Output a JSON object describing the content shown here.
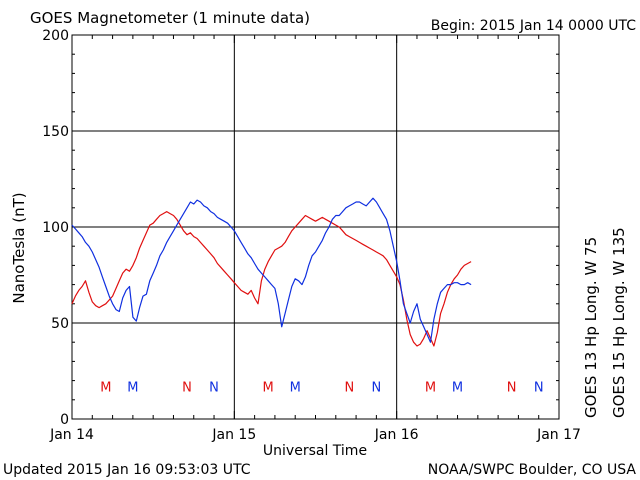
{
  "header": {
    "title": "GOES Magnetometer (1 minute data)",
    "begin": "Begin:  2015 Jan 14 0000 UTC"
  },
  "footer": {
    "updated": "Updated 2015 Jan 16 09:53:03 UTC",
    "credit": "NOAA/SWPC Boulder, CO USA"
  },
  "colors": {
    "goes13": "#e01010",
    "goes15": "#1030e0"
  },
  "chart_data": {
    "type": "line",
    "xlabel": "Universal Time",
    "ylabel": "NanoTesla (nT)",
    "xlim": [
      0,
      72
    ],
    "ylim": [
      0,
      200
    ],
    "grid": true,
    "x_ticks": [
      {
        "x": 0,
        "label": "Jan 14"
      },
      {
        "x": 24,
        "label": "Jan 15"
      },
      {
        "x": 48,
        "label": "Jan 16"
      },
      {
        "x": 72,
        "label": "Jan 17"
      }
    ],
    "y_ticks": [
      0,
      50,
      100,
      150,
      200
    ],
    "series": [
      {
        "name": "GOES 13 Hp  Long. W 75",
        "color": "#e01010",
        "x": [
          0,
          0.5,
          1,
          1.5,
          2,
          2.5,
          3,
          3.5,
          4,
          4.5,
          5,
          5.5,
          6,
          6.5,
          7,
          7.5,
          8,
          8.5,
          9,
          9.5,
          10,
          10.5,
          11,
          11.5,
          12,
          12.5,
          13,
          13.5,
          14,
          14.5,
          15,
          15.5,
          16,
          16.5,
          17,
          17.5,
          18,
          18.5,
          19,
          19.5,
          20,
          20.5,
          21,
          21.5,
          22,
          22.5,
          23,
          23.5,
          24,
          24.5,
          25,
          25.5,
          26,
          26.5,
          27,
          27.5,
          28,
          28.5,
          29,
          29.5,
          30,
          30.5,
          31,
          31.5,
          32,
          32.5,
          33,
          33.5,
          34,
          34.5,
          35,
          35.5,
          36,
          36.5,
          37,
          37.5,
          38,
          38.5,
          39,
          39.5,
          40,
          40.5,
          41,
          41.5,
          42,
          42.5,
          43,
          43.5,
          44,
          44.5,
          45,
          45.5,
          46,
          46.5,
          47,
          47.5,
          48,
          48.5,
          49,
          49.5,
          50,
          50.5,
          51,
          51.5,
          52,
          52.5,
          53,
          53.5,
          54,
          54.5,
          55,
          55.5,
          56,
          56.5,
          57,
          57.5,
          58,
          58.5,
          59
        ],
        "values": [
          60,
          64,
          67,
          69,
          72,
          66,
          61,
          59,
          58,
          59,
          60,
          62,
          64,
          68,
          72,
          76,
          78,
          77,
          80,
          84,
          89,
          93,
          97,
          101,
          102,
          104,
          106,
          107,
          108,
          107,
          106,
          104,
          101,
          98,
          96,
          97,
          95,
          94,
          92,
          90,
          88,
          86,
          84,
          81,
          79,
          77,
          75,
          73,
          71,
          69,
          67,
          66,
          65,
          67,
          63,
          60,
          72,
          78,
          82,
          85,
          88,
          89,
          90,
          92,
          95,
          98,
          100,
          102,
          104,
          106,
          105,
          104,
          103,
          104,
          105,
          104,
          103,
          102,
          101,
          100,
          98,
          96,
          95,
          94,
          93,
          92,
          91,
          90,
          89,
          88,
          87,
          86,
          85,
          83,
          80,
          77,
          74,
          70,
          62,
          52,
          44,
          40,
          38,
          39,
          42,
          46,
          42,
          38,
          45,
          55,
          60,
          66,
          70,
          73,
          75,
          78,
          80,
          81,
          82
        ]
      },
      {
        "name": "GOES 15 Hp  Long. W 135",
        "color": "#1030e0",
        "x": [
          0,
          0.5,
          1,
          1.5,
          2,
          2.5,
          3,
          3.5,
          4,
          4.5,
          5,
          5.5,
          6,
          6.5,
          7,
          7.5,
          8,
          8.5,
          9,
          9.5,
          10,
          10.5,
          11,
          11.5,
          12,
          12.5,
          13,
          13.5,
          14,
          14.5,
          15,
          15.5,
          16,
          16.5,
          17,
          17.5,
          18,
          18.5,
          19,
          19.5,
          20,
          20.5,
          21,
          21.5,
          22,
          22.5,
          23,
          23.5,
          24,
          24.5,
          25,
          25.5,
          26,
          26.5,
          27,
          27.5,
          28,
          28.5,
          29,
          29.5,
          30,
          30.5,
          31,
          31.5,
          32,
          32.5,
          33,
          33.5,
          34,
          34.5,
          35,
          35.5,
          36,
          36.5,
          37,
          37.5,
          38,
          38.5,
          39,
          39.5,
          40,
          40.5,
          41,
          41.5,
          42,
          42.5,
          43,
          43.5,
          44,
          44.5,
          45,
          45.5,
          46,
          46.5,
          47,
          47.5,
          48,
          48.5,
          49,
          49.5,
          50,
          50.5,
          51,
          51.5,
          52,
          52.5,
          53,
          53.5,
          54,
          54.5,
          55,
          55.5,
          56,
          56.5,
          57,
          57.5,
          58,
          58.5,
          59
        ],
        "values": [
          101,
          99,
          97,
          95,
          92,
          90,
          87,
          83,
          79,
          74,
          69,
          64,
          60,
          57,
          56,
          63,
          67,
          69,
          53,
          51,
          58,
          64,
          65,
          72,
          76,
          80,
          85,
          88,
          92,
          95,
          98,
          101,
          104,
          107,
          110,
          113,
          112,
          114,
          113,
          111,
          110,
          108,
          107,
          105,
          104,
          103,
          102,
          100,
          98,
          95,
          92,
          89,
          86,
          84,
          81,
          78,
          76,
          74,
          72,
          70,
          68,
          60,
          48,
          55,
          62,
          69,
          73,
          72,
          70,
          74,
          80,
          85,
          87,
          90,
          93,
          97,
          100,
          104,
          106,
          106,
          108,
          110,
          111,
          112,
          113,
          113,
          112,
          111,
          113,
          115,
          113,
          110,
          107,
          104,
          98,
          90,
          82,
          72,
          60,
          55,
          50,
          56,
          60,
          52,
          48,
          44,
          40,
          52,
          60,
          66,
          68,
          70,
          70,
          71,
          71,
          70,
          70,
          71,
          70
        ]
      }
    ],
    "markers": [
      {
        "x": 5,
        "label": "M",
        "color": "#e01010"
      },
      {
        "x": 9,
        "label": "M",
        "color": "#1030e0"
      },
      {
        "x": 17,
        "label": "N",
        "color": "#e01010"
      },
      {
        "x": 21,
        "label": "N",
        "color": "#1030e0"
      },
      {
        "x": 29,
        "label": "M",
        "color": "#e01010"
      },
      {
        "x": 33,
        "label": "M",
        "color": "#1030e0"
      },
      {
        "x": 41,
        "label": "N",
        "color": "#e01010"
      },
      {
        "x": 45,
        "label": "N",
        "color": "#1030e0"
      },
      {
        "x": 53,
        "label": "M",
        "color": "#e01010"
      },
      {
        "x": 57,
        "label": "M",
        "color": "#1030e0"
      },
      {
        "x": 65,
        "label": "N",
        "color": "#e01010"
      },
      {
        "x": 69,
        "label": "N",
        "color": "#1030e0"
      }
    ],
    "marker_level": 17
  }
}
